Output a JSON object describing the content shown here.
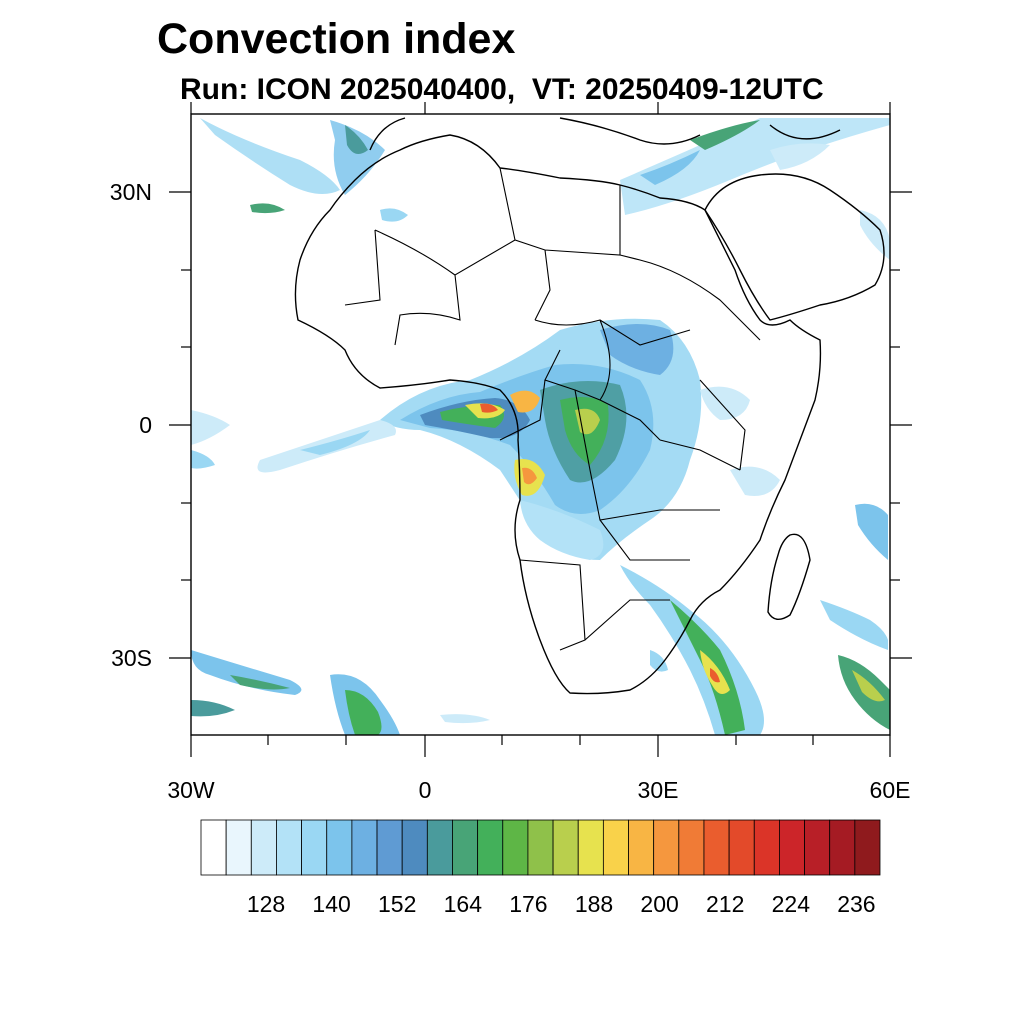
{
  "title": "Convection index",
  "subtitle": "Run: ICON 2025040400,  VT: 20250409-12UTC",
  "axes": {
    "lon_labels": [
      "30W",
      "0",
      "30E",
      "60E"
    ],
    "lat_labels": [
      "30N",
      "0",
      "30S"
    ],
    "lon_range": [
      -30,
      60
    ],
    "lat_range": [
      -40,
      40
    ]
  },
  "colorbar": {
    "labels": [
      "128",
      "140",
      "152",
      "164",
      "176",
      "188",
      "200",
      "212",
      "224",
      "236"
    ],
    "colors": [
      "#ffffff",
      "#e9f6fd",
      "#cdebf9",
      "#b3e2f7",
      "#9ad7f3",
      "#7cc4ec",
      "#6db0e2",
      "#5f9bd3",
      "#4e8bbf",
      "#4a9b9c",
      "#48a477",
      "#43b05a",
      "#5eb646",
      "#8fc14a",
      "#b9cf4d",
      "#e7e24e",
      "#f9d24a",
      "#f8b544",
      "#f5973e",
      "#f07b36",
      "#ea5d2e",
      "#e34a2a",
      "#db3428",
      "#cc2529",
      "#b81f27",
      "#a51b23",
      "#8f1a1d"
    ]
  }
}
